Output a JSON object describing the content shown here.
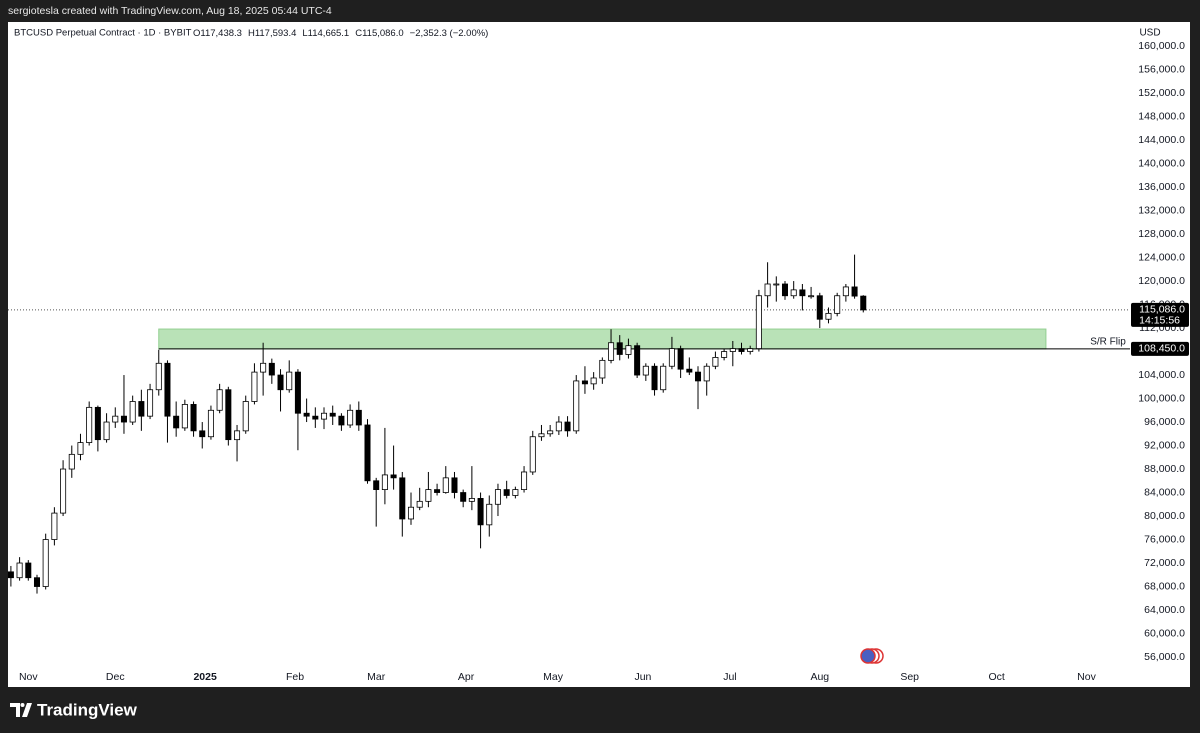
{
  "page": {
    "attribution": "sergiotesla created with TradingView.com, Aug 18, 2025 05:44 UTC-4",
    "brand": "TradingView"
  },
  "chart_data": {
    "type": "candlestick",
    "title": "BTCUSD Perpetual Contract · 1D · BYBIT",
    "ohlc_labels": [
      "O117,438.3",
      "H117,593.4",
      "L114,665.1",
      "C115,086.0",
      "−2,352.3 (−2.00%)"
    ],
    "currency": "USD",
    "up_color": "#ffffff",
    "down_color": "#000000",
    "wick_color": "#000000",
    "grid": false,
    "candle_step": 3,
    "candles": [
      [
        70500,
        71500,
        68000,
        69500
      ],
      [
        69500,
        73000,
        69000,
        72000
      ],
      [
        72000,
        72500,
        69000,
        69500
      ],
      [
        69500,
        70000,
        66800,
        68000
      ],
      [
        68000,
        77000,
        67500,
        76000
      ],
      [
        76000,
        81500,
        75000,
        80500
      ],
      [
        80500,
        89500,
        80000,
        88000
      ],
      [
        88000,
        92000,
        86500,
        90500
      ],
      [
        90500,
        94000,
        89500,
        92500
      ],
      [
        92500,
        99500,
        92000,
        98500
      ],
      [
        98500,
        98800,
        91000,
        93000
      ],
      [
        93000,
        97500,
        92500,
        96000
      ],
      [
        96000,
        98500,
        95000,
        97000
      ],
      [
        97000,
        104000,
        94000,
        96000
      ],
      [
        96000,
        100500,
        95500,
        99500
      ],
      [
        99500,
        101500,
        94500,
        97000
      ],
      [
        97000,
        102500,
        96500,
        101500
      ],
      [
        101500,
        108300,
        100500,
        106000
      ],
      [
        106000,
        106500,
        92500,
        97000
      ],
      [
        97000,
        99500,
        93500,
        95000
      ],
      [
        95000,
        99800,
        94500,
        99000
      ],
      [
        99000,
        99500,
        93500,
        94500
      ],
      [
        94500,
        96000,
        91500,
        93500
      ],
      [
        93500,
        98800,
        93000,
        98000
      ],
      [
        98000,
        102500,
        97500,
        101500
      ],
      [
        101500,
        102000,
        92000,
        93000
      ],
      [
        93000,
        95500,
        89300,
        94500
      ],
      [
        94500,
        100500,
        94000,
        99500
      ],
      [
        99500,
        106000,
        99000,
        104500
      ],
      [
        104500,
        109500,
        100500,
        106000
      ],
      [
        106000,
        106800,
        102500,
        104000
      ],
      [
        104000,
        105000,
        97800,
        101500
      ],
      [
        101500,
        106500,
        101000,
        104500
      ],
      [
        104500,
        105000,
        91200,
        97500
      ],
      [
        97500,
        100000,
        96000,
        97000
      ],
      [
        97000,
        98500,
        95000,
        96500
      ],
      [
        96500,
        98500,
        94800,
        97500
      ],
      [
        97500,
        98800,
        95500,
        97000
      ],
      [
        97000,
        97500,
        94500,
        95500
      ],
      [
        95500,
        99000,
        95000,
        98000
      ],
      [
        98000,
        99500,
        94500,
        95500
      ],
      [
        95500,
        96500,
        85500,
        86000
      ],
      [
        86000,
        86500,
        78200,
        84500
      ],
      [
        84500,
        95000,
        82000,
        87000
      ],
      [
        87000,
        92000,
        84500,
        86500
      ],
      [
        86500,
        87500,
        76500,
        79500
      ],
      [
        79500,
        84000,
        78500,
        81500
      ],
      [
        81500,
        84800,
        81000,
        82500
      ],
      [
        82500,
        87500,
        81500,
        84500
      ],
      [
        84500,
        85500,
        83500,
        84000
      ],
      [
        84000,
        88500,
        83800,
        86500
      ],
      [
        86500,
        87500,
        83000,
        84000
      ],
      [
        84000,
        84500,
        81500,
        82500
      ],
      [
        82500,
        88500,
        81000,
        83000
      ],
      [
        83000,
        84000,
        74500,
        78500
      ],
      [
        78500,
        83500,
        76500,
        82000
      ],
      [
        82000,
        85500,
        80000,
        84500
      ],
      [
        84500,
        86000,
        83000,
        83500
      ],
      [
        83500,
        85000,
        83000,
        84500
      ],
      [
        84500,
        88500,
        84000,
        87500
      ],
      [
        87500,
        94500,
        87000,
        93500
      ],
      [
        93500,
        95500,
        92800,
        94000
      ],
      [
        94000,
        95500,
        93500,
        94500
      ],
      [
        94500,
        97000,
        93800,
        96000
      ],
      [
        96000,
        97000,
        93500,
        94500
      ],
      [
        94500,
        104000,
        94000,
        103000
      ],
      [
        103000,
        105500,
        100800,
        102500
      ],
      [
        102500,
        104500,
        101500,
        103500
      ],
      [
        103500,
        107000,
        102500,
        106500
      ],
      [
        106500,
        111800,
        106000,
        109500
      ],
      [
        109500,
        110800,
        106500,
        107500
      ],
      [
        107500,
        110200,
        106800,
        109000
      ],
      [
        109000,
        109500,
        103500,
        104000
      ],
      [
        104000,
        106000,
        103000,
        105500
      ],
      [
        105500,
        106000,
        100500,
        101500
      ],
      [
        101500,
        106000,
        101000,
        105500
      ],
      [
        105500,
        110500,
        105000,
        108500
      ],
      [
        108500,
        109000,
        103500,
        105000
      ],
      [
        105000,
        107000,
        104000,
        104500
      ],
      [
        104500,
        105500,
        98200,
        103000
      ],
      [
        103000,
        106000,
        100500,
        105500
      ],
      [
        105500,
        108000,
        105000,
        107000
      ],
      [
        107000,
        108500,
        106500,
        108000
      ],
      [
        108000,
        109800,
        105500,
        108500
      ],
      [
        108500,
        109500,
        107500,
        108000
      ],
      [
        108000,
        109000,
        107500,
        108500
      ],
      [
        108500,
        118500,
        108000,
        117500
      ],
      [
        117500,
        123200,
        115500,
        119500
      ],
      [
        119500,
        120800,
        116500,
        119500
      ],
      [
        119500,
        120000,
        116800,
        117500
      ],
      [
        117500,
        120000,
        117000,
        118500
      ],
      [
        118500,
        119500,
        115000,
        117500
      ],
      [
        117500,
        119000,
        117000,
        117500
      ],
      [
        117500,
        118000,
        112000,
        113500
      ],
      [
        113500,
        115500,
        112800,
        114500
      ],
      [
        114500,
        118000,
        114000,
        117500
      ],
      [
        117500,
        119500,
        116500,
        119000
      ],
      [
        119000,
        124500,
        117000,
        117438.3
      ],
      [
        117438.3,
        117593.4,
        114665.1,
        115086.0
      ]
    ],
    "xlim": [
      -1,
      386
    ],
    "xticks": [
      {
        "value": 6,
        "label": "Nov"
      },
      {
        "value": 36,
        "label": "Dec"
      },
      {
        "value": 67,
        "label": "2025"
      },
      {
        "value": 98,
        "label": "Feb"
      },
      {
        "value": 126,
        "label": "Mar"
      },
      {
        "value": 157,
        "label": "Apr"
      },
      {
        "value": 187,
        "label": "May"
      },
      {
        "value": 218,
        "label": "Jun"
      },
      {
        "value": 248,
        "label": "Jul"
      },
      {
        "value": 279,
        "label": "Aug"
      },
      {
        "value": 310,
        "label": "Sep"
      },
      {
        "value": 340,
        "label": "Oct"
      },
      {
        "value": 371,
        "label": "Nov"
      }
    ],
    "ylim": [
      54300,
      164100
    ],
    "yticks": [
      {
        "value": 56000,
        "label": "56,000.0"
      },
      {
        "value": 60000,
        "label": "60,000.0"
      },
      {
        "value": 64000,
        "label": "64,000.0"
      },
      {
        "value": 68000,
        "label": "68,000.0"
      },
      {
        "value": 72000,
        "label": "72,000.0"
      },
      {
        "value": 76000,
        "label": "76,000.0"
      },
      {
        "value": 80000,
        "label": "80,000.0"
      },
      {
        "value": 84000,
        "label": "84,000.0"
      },
      {
        "value": 88000,
        "label": "88,000.0"
      },
      {
        "value": 92000,
        "label": "92,000.0"
      },
      {
        "value": 96000,
        "label": "96,000.0"
      },
      {
        "value": 100000,
        "label": "100,000.0"
      },
      {
        "value": 104000,
        "label": "104,000.0"
      },
      {
        "value": 108000,
        "label": "108,000.0"
      },
      {
        "value": 112000,
        "label": "112,000.0"
      },
      {
        "value": 116000,
        "label": "116,000.0"
      },
      {
        "value": 120000,
        "label": "120,000.0"
      },
      {
        "value": 124000,
        "label": "124,000.0"
      },
      {
        "value": 128000,
        "label": "128,000.0"
      },
      {
        "value": 132000,
        "label": "132,000.0"
      },
      {
        "value": 136000,
        "label": "136,000.0"
      },
      {
        "value": 140000,
        "label": "140,000.0"
      },
      {
        "value": 144000,
        "label": "144,000.0"
      },
      {
        "value": 148000,
        "label": "148,000.0"
      },
      {
        "value": 152000,
        "label": "152,000.0"
      },
      {
        "value": 156000,
        "label": "156,000.0"
      },
      {
        "value": 160000,
        "label": "160,000.0"
      }
    ],
    "zone": {
      "x": [
        51,
        357
      ],
      "y": [
        108450,
        111830
      ],
      "color": "#b9e2b7"
    },
    "level": {
      "value": 108450,
      "label": "108,450.0",
      "name": "S/R Flip",
      "x": 51
    },
    "current_price": {
      "value": 115086.0,
      "label": "115,086.0",
      "countdown": "14:15:56"
    }
  }
}
